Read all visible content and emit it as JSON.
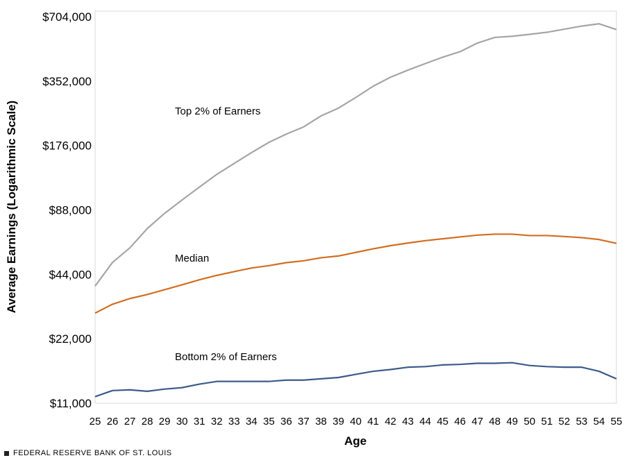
{
  "chart_data": {
    "type": "line",
    "title": "",
    "xlabel": "Age",
    "ylabel": "Average Earnings (Logarithmic Scale)",
    "yscale": "log2",
    "ylim": [
      11000,
      704000
    ],
    "yticks": [
      11000,
      22000,
      44000,
      88000,
      176000,
      352000,
      704000
    ],
    "ytick_labels": [
      "$11,000",
      "$22,000",
      "$44,000",
      "$88,000",
      "$176,000",
      "$352,000",
      "$704,000"
    ],
    "x": [
      25,
      26,
      27,
      28,
      29,
      30,
      31,
      32,
      33,
      34,
      35,
      36,
      37,
      38,
      39,
      40,
      41,
      42,
      43,
      44,
      45,
      46,
      47,
      48,
      49,
      50,
      51,
      52,
      53,
      54,
      55
    ],
    "xtick_labels": [
      "25",
      "26",
      "27",
      "28",
      "29",
      "30",
      "31",
      "32",
      "33",
      "34",
      "35",
      "36",
      "37",
      "38",
      "39",
      "40",
      "41",
      "42",
      "43",
      "44",
      "45",
      "46",
      "47",
      "48",
      "49",
      "50",
      "51",
      "52",
      "53",
      "54",
      "55"
    ],
    "grid": false,
    "series": [
      {
        "name": "Top 2% of Earners",
        "color": "#a5a5a5",
        "values": [
          38800,
          50000,
          58500,
          72000,
          84800,
          97900,
          112500,
          129000,
          145000,
          163000,
          182000,
          199000,
          215000,
          242000,
          263000,
          295000,
          333000,
          367000,
          396000,
          425000,
          455000,
          483000,
          530000,
          563000,
          570000,
          582000,
          595000,
          615000,
          636000,
          652000,
          613000
        ]
      },
      {
        "name": "Median",
        "color": "#d36d1f",
        "values": [
          29000,
          31900,
          33900,
          35400,
          37300,
          39300,
          41500,
          43500,
          45300,
          47100,
          48300,
          49900,
          50900,
          52600,
          53600,
          55700,
          57900,
          59900,
          61600,
          63200,
          64500,
          65800,
          67100,
          67800,
          67800,
          66800,
          66800,
          66100,
          65300,
          64000,
          61400
        ]
      },
      {
        "name": "Bottom 2% of Earners",
        "color": "#3c5a8c",
        "values": [
          11800,
          12600,
          12700,
          12500,
          12800,
          13000,
          13500,
          13900,
          13900,
          13900,
          13900,
          14100,
          14100,
          14300,
          14500,
          15000,
          15500,
          15800,
          16200,
          16300,
          16600,
          16700,
          16900,
          16900,
          17000,
          16500,
          16300,
          16200,
          16200,
          15500,
          14300
        ]
      }
    ],
    "annotations": [
      {
        "text": "Top 2% of Earners",
        "series": 0
      },
      {
        "text": "Median",
        "series": 1
      },
      {
        "text": "Bottom 2% of Earners",
        "series": 2
      }
    ]
  },
  "footer": {
    "source": "FEDERAL RESERVE BANK OF ST. LOUIS"
  }
}
